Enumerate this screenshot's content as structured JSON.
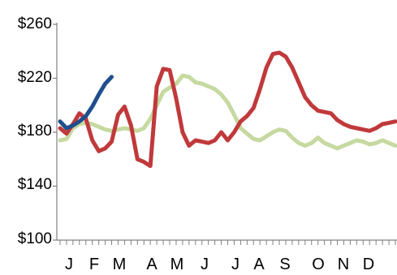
{
  "chart_data": {
    "type": "line",
    "title": "",
    "xlabel": "",
    "ylabel": "",
    "y_ticks": [
      "$260",
      "$220",
      "$180",
      "$140",
      "$100"
    ],
    "y_tick_values": [
      260,
      220,
      180,
      140,
      100
    ],
    "ylim": [
      100,
      260
    ],
    "x_months": [
      "J",
      "F",
      "M",
      "A",
      "M",
      "J",
      "J",
      "A",
      "S",
      "O",
      "N",
      "D"
    ],
    "xlim": [
      0,
      52
    ],
    "x_unit": "week of year",
    "grid": false,
    "legend": "none",
    "series": [
      {
        "color": "#c6d9a0",
        "x": [
          0,
          1,
          2,
          3,
          4,
          5,
          6,
          7,
          8,
          9,
          10,
          11,
          12,
          13,
          14,
          15,
          16,
          17,
          18,
          19,
          20,
          21,
          22,
          23,
          24,
          25,
          26,
          27,
          28,
          29,
          30,
          31,
          32,
          33,
          34,
          35,
          36,
          37,
          38,
          39,
          40,
          41,
          42,
          43,
          44,
          45,
          46,
          47,
          48,
          49,
          50,
          51,
          52
        ],
        "values": [
          174,
          175,
          183,
          186,
          187,
          186,
          184,
          182,
          181,
          182,
          183,
          182,
          181,
          183,
          190,
          200,
          210,
          213,
          216,
          222,
          221,
          217,
          216,
          214,
          212,
          208,
          202,
          193,
          183,
          179,
          175,
          174,
          177,
          180,
          182,
          181,
          176,
          172,
          170,
          172,
          176,
          172,
          170,
          168,
          170,
          172,
          174,
          173,
          171,
          172,
          174,
          172,
          170
        ]
      },
      {
        "color": "#c0393b",
        "x": [
          0,
          1,
          2,
          3,
          4,
          5,
          6,
          7,
          8,
          9,
          10,
          11,
          12,
          13,
          14,
          15,
          16,
          17,
          18,
          19,
          20,
          21,
          22,
          23,
          24,
          25,
          26,
          27,
          28,
          29,
          30,
          31,
          32,
          33,
          34,
          35,
          36,
          37,
          38,
          39,
          40,
          41,
          42,
          43,
          44,
          45,
          46,
          47,
          48,
          49,
          50,
          51,
          52
        ],
        "values": [
          183,
          179,
          186,
          194,
          190,
          174,
          166,
          168,
          173,
          193,
          199,
          185,
          160,
          158,
          155,
          214,
          227,
          226,
          205,
          180,
          170,
          174,
          173,
          172,
          174,
          180,
          174,
          180,
          188,
          192,
          198,
          212,
          228,
          238,
          239,
          236,
          228,
          217,
          206,
          200,
          196,
          195,
          194,
          189,
          186,
          184,
          183,
          182,
          181,
          183,
          186,
          187,
          188
        ]
      },
      {
        "color": "#1f4e8c",
        "x": [
          0,
          1,
          2,
          3,
          4,
          5,
          6,
          7,
          8
        ],
        "values": [
          188,
          183,
          185,
          188,
          192,
          199,
          208,
          216,
          221
        ]
      }
    ]
  }
}
